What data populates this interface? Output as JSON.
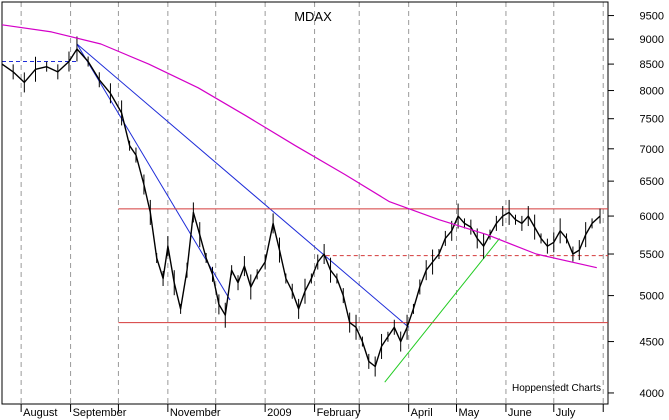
{
  "chart_data": {
    "type": "line",
    "title": "MDAX",
    "source_label": "Hoppenstedt Charts",
    "scale": "log",
    "ylim": [
      3900,
      9800
    ],
    "y_ticks": [
      9500,
      9000,
      8500,
      8000,
      7500,
      7000,
      6500,
      6000,
      5500,
      5000,
      4500,
      4000
    ],
    "x_labels": [
      "August",
      "September",
      "November",
      "2009",
      "February",
      "April",
      "May",
      "June",
      "July"
    ],
    "x_range": [
      "2008-07-20",
      "2009-08-04"
    ],
    "x_ticks": [
      "2008-08-01",
      "2008-09-01",
      "2008-10-01",
      "2008-11-01",
      "2008-12-01",
      "2009-01-01",
      "2009-02-01",
      "2009-03-01",
      "2009-04-01",
      "2009-05-01",
      "2009-06-01",
      "2009-07-01",
      "2009-08-01"
    ],
    "x_label_dates": [
      "2008-08-01",
      "2008-09-01",
      "2008-11-01",
      "2009-01-01",
      "2009-02-01",
      "2009-04-01",
      "2009-05-01",
      "2009-06-01",
      "2009-07-01"
    ],
    "series": [
      {
        "style": "price",
        "color": "#000000",
        "points": [
          [
            "2008-07-20",
            8500
          ],
          [
            "2008-07-27",
            8350
          ],
          [
            "2008-08-03",
            8150
          ],
          [
            "2008-08-10",
            8400
          ],
          [
            "2008-08-17",
            8450
          ],
          [
            "2008-08-24",
            8350
          ],
          [
            "2008-08-31",
            8550
          ],
          [
            "2008-09-05",
            8800
          ],
          [
            "2008-09-12",
            8550
          ],
          [
            "2008-09-19",
            8200
          ],
          [
            "2008-09-26",
            7950
          ],
          [
            "2008-10-03",
            7600
          ],
          [
            "2008-10-08",
            7050
          ],
          [
            "2008-10-12",
            6900
          ],
          [
            "2008-10-17",
            6450
          ],
          [
            "2008-10-21",
            6050
          ],
          [
            "2008-10-25",
            5450
          ],
          [
            "2008-10-29",
            5200
          ],
          [
            "2008-11-01",
            5600
          ],
          [
            "2008-11-05",
            5150
          ],
          [
            "2008-11-09",
            4850
          ],
          [
            "2008-11-13",
            5300
          ],
          [
            "2008-11-17",
            6050
          ],
          [
            "2008-11-21",
            5750
          ],
          [
            "2008-11-25",
            5450
          ],
          [
            "2008-11-29",
            5250
          ],
          [
            "2008-12-03",
            4900
          ],
          [
            "2008-12-07",
            4780
          ],
          [
            "2008-12-11",
            5300
          ],
          [
            "2008-12-15",
            5150
          ],
          [
            "2008-12-19",
            5350
          ],
          [
            "2008-12-23",
            5100
          ],
          [
            "2008-12-27",
            5250
          ],
          [
            "2009-01-01",
            5400
          ],
          [
            "2009-01-06",
            5900
          ],
          [
            "2009-01-10",
            5550
          ],
          [
            "2009-01-14",
            5200
          ],
          [
            "2009-01-18",
            5050
          ],
          [
            "2009-01-22",
            4850
          ],
          [
            "2009-01-26",
            5050
          ],
          [
            "2009-01-30",
            5200
          ],
          [
            "2009-02-03",
            5400
          ],
          [
            "2009-02-07",
            5500
          ],
          [
            "2009-02-11",
            5300
          ],
          [
            "2009-02-15",
            5200
          ],
          [
            "2009-02-19",
            5000
          ],
          [
            "2009-02-23",
            4700
          ],
          [
            "2009-02-27",
            4650
          ],
          [
            "2009-03-03",
            4500
          ],
          [
            "2009-03-07",
            4300
          ],
          [
            "2009-03-11",
            4250
          ],
          [
            "2009-03-15",
            4450
          ],
          [
            "2009-03-19",
            4550
          ],
          [
            "2009-03-23",
            4650
          ],
          [
            "2009-03-27",
            4500
          ],
          [
            "2009-03-31",
            4650
          ],
          [
            "2009-04-04",
            4850
          ],
          [
            "2009-04-08",
            5100
          ],
          [
            "2009-04-12",
            5300
          ],
          [
            "2009-04-16",
            5400
          ],
          [
            "2009-04-20",
            5500
          ],
          [
            "2009-04-24",
            5700
          ],
          [
            "2009-04-28",
            5800
          ],
          [
            "2009-05-02",
            6000
          ],
          [
            "2009-05-06",
            5900
          ],
          [
            "2009-05-10",
            5850
          ],
          [
            "2009-05-14",
            5700
          ],
          [
            "2009-05-18",
            5600
          ],
          [
            "2009-05-22",
            5750
          ],
          [
            "2009-05-26",
            5900
          ],
          [
            "2009-05-30",
            6000
          ],
          [
            "2009-06-03",
            6050
          ],
          [
            "2009-06-07",
            5950
          ],
          [
            "2009-06-11",
            5900
          ],
          [
            "2009-06-15",
            6000
          ],
          [
            "2009-06-19",
            5850
          ],
          [
            "2009-06-23",
            5700
          ],
          [
            "2009-06-27",
            5600
          ],
          [
            "2009-07-01",
            5650
          ],
          [
            "2009-07-05",
            5800
          ],
          [
            "2009-07-09",
            5700
          ],
          [
            "2009-07-13",
            5500
          ],
          [
            "2009-07-17",
            5550
          ],
          [
            "2009-07-21",
            5750
          ],
          [
            "2009-07-25",
            5900
          ],
          [
            "2009-07-30",
            6000
          ]
        ]
      },
      {
        "style": "moving-average",
        "color": "#d400c8",
        "points": [
          [
            "2008-07-20",
            9300
          ],
          [
            "2008-08-20",
            9150
          ],
          [
            "2008-09-20",
            8900
          ],
          [
            "2008-10-20",
            8500
          ],
          [
            "2008-11-20",
            8050
          ],
          [
            "2008-12-20",
            7550
          ],
          [
            "2009-01-20",
            7050
          ],
          [
            "2009-02-20",
            6600
          ],
          [
            "2009-03-20",
            6200
          ],
          [
            "2009-04-20",
            5950
          ],
          [
            "2009-05-20",
            5750
          ],
          [
            "2009-06-20",
            5500
          ],
          [
            "2009-07-28",
            5330
          ]
        ]
      }
    ],
    "trendlines": [
      {
        "color": "#1d2bd8",
        "from": [
          "2008-09-05",
          8900
        ],
        "to": [
          "2008-12-10",
          4950
        ]
      },
      {
        "color": "#1d2bd8",
        "from": [
          "2008-09-05",
          8900
        ],
        "to": [
          "2009-04-01",
          4650
        ]
      },
      {
        "color": "#22cc22",
        "from": [
          "2009-03-17",
          4100
        ],
        "to": [
          "2009-05-28",
          5700
        ]
      },
      {
        "color": "#d43a3a",
        "from": [
          "2008-10-01",
          6100
        ],
        "to": [
          "2009-08-04",
          6100
        ]
      },
      {
        "color": "#d43a3a",
        "from": [
          "2008-10-01",
          4700
        ],
        "to": [
          "2009-08-04",
          4700
        ]
      },
      {
        "color": "#d43a3a",
        "dashed": true,
        "from": [
          "2009-02-08",
          5480
        ],
        "to": [
          "2009-08-04",
          5480
        ]
      },
      {
        "color": "#1d2bd8",
        "dashed": true,
        "from": [
          "2008-07-20",
          8550
        ],
        "to": [
          "2008-09-05",
          8550
        ]
      }
    ],
    "grid": "vertical-dashed"
  }
}
